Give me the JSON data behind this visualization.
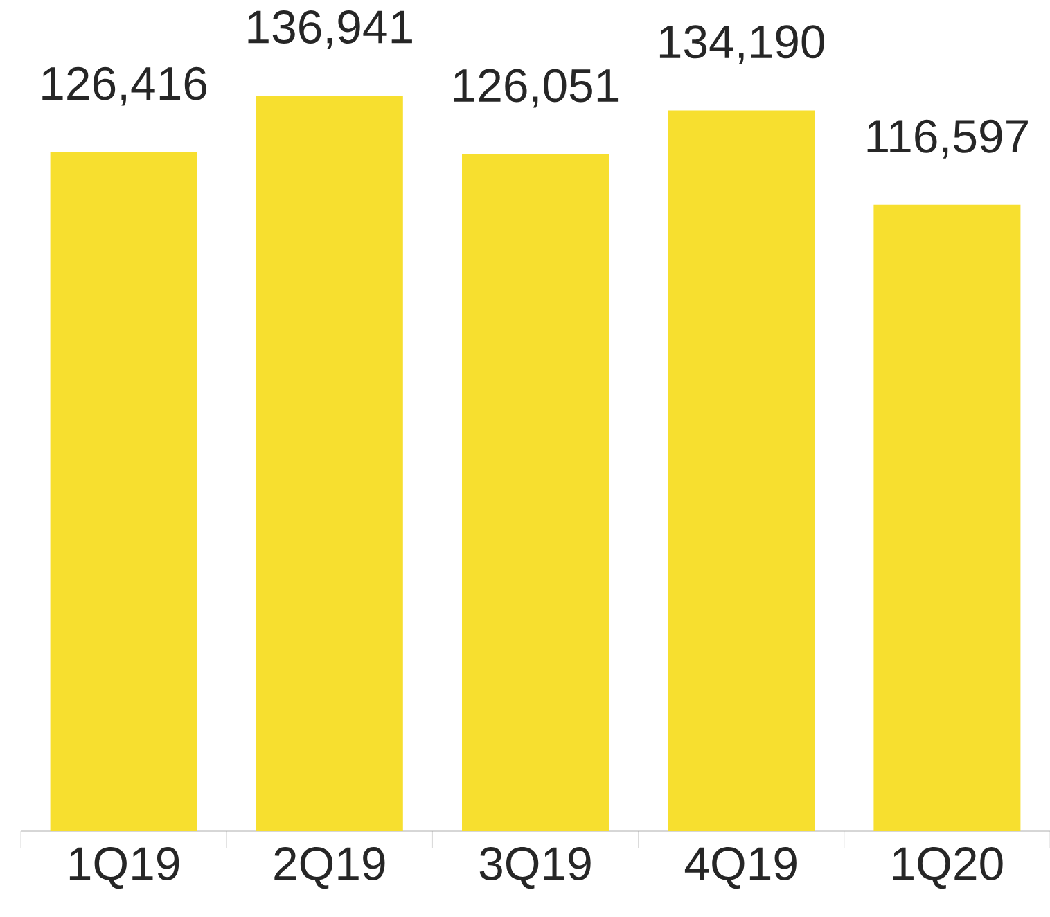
{
  "chart_data": {
    "type": "bar",
    "categories": [
      "1Q19",
      "2Q19",
      "3Q19",
      "4Q19",
      "1Q20"
    ],
    "values": [
      126416,
      136941,
      126051,
      134190,
      116597
    ],
    "value_labels": [
      "126,416",
      "136,941",
      "126,051",
      "134,190",
      "116,597"
    ],
    "color": "#f7df2f"
  }
}
